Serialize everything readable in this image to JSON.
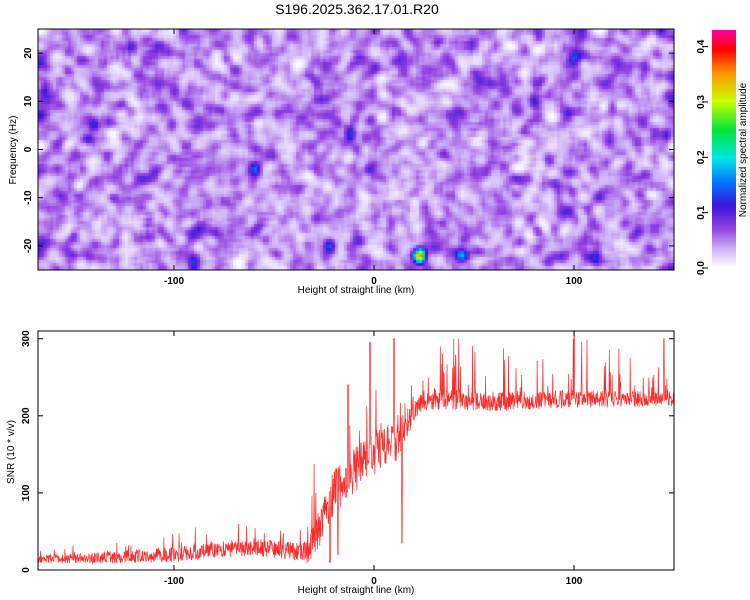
{
  "title": "S196.2025.362.17.01.R20",
  "colors": {
    "line": "#ff2a2a",
    "axis": "#000000",
    "background": "#ffffff"
  },
  "chart_data": [
    {
      "type": "heatmap",
      "title": "S196.2025.362.17.01.R20",
      "xlabel": "Height of straight line (km)",
      "ylabel": "Frequency (Hz)",
      "xlim": [
        -168,
        150
      ],
      "ylim": [
        -25,
        25
      ],
      "xticks": [
        -100,
        0,
        100
      ],
      "yticks": [
        -20,
        -10,
        0,
        10,
        20
      ],
      "xtick_labels": [
        "-100",
        "0",
        "100"
      ],
      "ytick_labels": [
        "-20",
        "-10",
        "0",
        "10",
        "20"
      ],
      "colorbar": {
        "label": "Normalized spectral amplitude",
        "range": [
          0.0,
          0.43
        ],
        "ticks": [
          0.0,
          0.1,
          0.2,
          0.3,
          0.4
        ],
        "tick_labels": [
          "0.0",
          "0.1",
          "0.2",
          "0.3",
          "0.4"
        ]
      },
      "background_level": 0.06,
      "hotspots": [
        {
          "x": 23,
          "y": -22,
          "value": 0.31
        },
        {
          "x": -22,
          "y": -20,
          "value": 0.12
        },
        {
          "x": 44,
          "y": -22,
          "value": 0.1
        },
        {
          "x": 111,
          "y": -22,
          "value": 0.1
        },
        {
          "x": -140,
          "y": 5,
          "value": 0.1
        },
        {
          "x": -165,
          "y": 12,
          "value": 0.09
        },
        {
          "x": -60,
          "y": -4,
          "value": 0.09
        },
        {
          "x": -12,
          "y": 3,
          "value": 0.09
        },
        {
          "x": 100,
          "y": 19,
          "value": 0.09
        },
        {
          "x": 146,
          "y": 3,
          "value": 0.09
        },
        {
          "x": -90,
          "y": -24,
          "value": 0.09
        }
      ]
    },
    {
      "type": "line",
      "xlabel": "Height of straight line (km)",
      "ylabel": "SNR (10 * v/v)",
      "xlim": [
        -168,
        150
      ],
      "ylim": [
        0,
        310
      ],
      "xticks": [
        -100,
        0,
        100
      ],
      "yticks": [
        0,
        100,
        200,
        300
      ],
      "xtick_labels": [
        "-100",
        "0",
        "100"
      ],
      "ytick_labels": [
        "0",
        "100",
        "200",
        "300"
      ],
      "trend": {
        "x": [
          -168,
          -130,
          -100,
          -80,
          -60,
          -40,
          -32,
          -28,
          -20,
          -15,
          -8,
          0,
          5,
          10,
          15,
          20,
          25,
          30,
          45,
          60,
          80,
          100,
          120,
          150
        ],
        "y": [
          14,
          16,
          20,
          26,
          30,
          24,
          26,
          55,
          100,
          115,
          135,
          150,
          165,
          165,
          185,
          205,
          218,
          222,
          220,
          219,
          220,
          222,
          221,
          222
        ]
      },
      "noise_amplitude": {
        "x": [
          -168,
          -100,
          -35,
          -30,
          10,
          20,
          150
        ],
        "y": [
          5,
          10,
          12,
          28,
          32,
          14,
          10
        ]
      },
      "n_points": 1800,
      "spikes": [
        {
          "x": -18,
          "y": 310
        },
        {
          "x": -13,
          "y": 240
        },
        {
          "x": -2,
          "y": 295
        },
        {
          "x": 10,
          "y": 300
        },
        {
          "x": 100,
          "y": 310
        },
        {
          "x": 145,
          "y": 300
        }
      ],
      "dips": [
        {
          "x": -32,
          "y": 20
        },
        {
          "x": -22,
          "y": 10
        },
        {
          "x": -18,
          "y": 20
        },
        {
          "x": 14,
          "y": 35
        }
      ]
    }
  ]
}
